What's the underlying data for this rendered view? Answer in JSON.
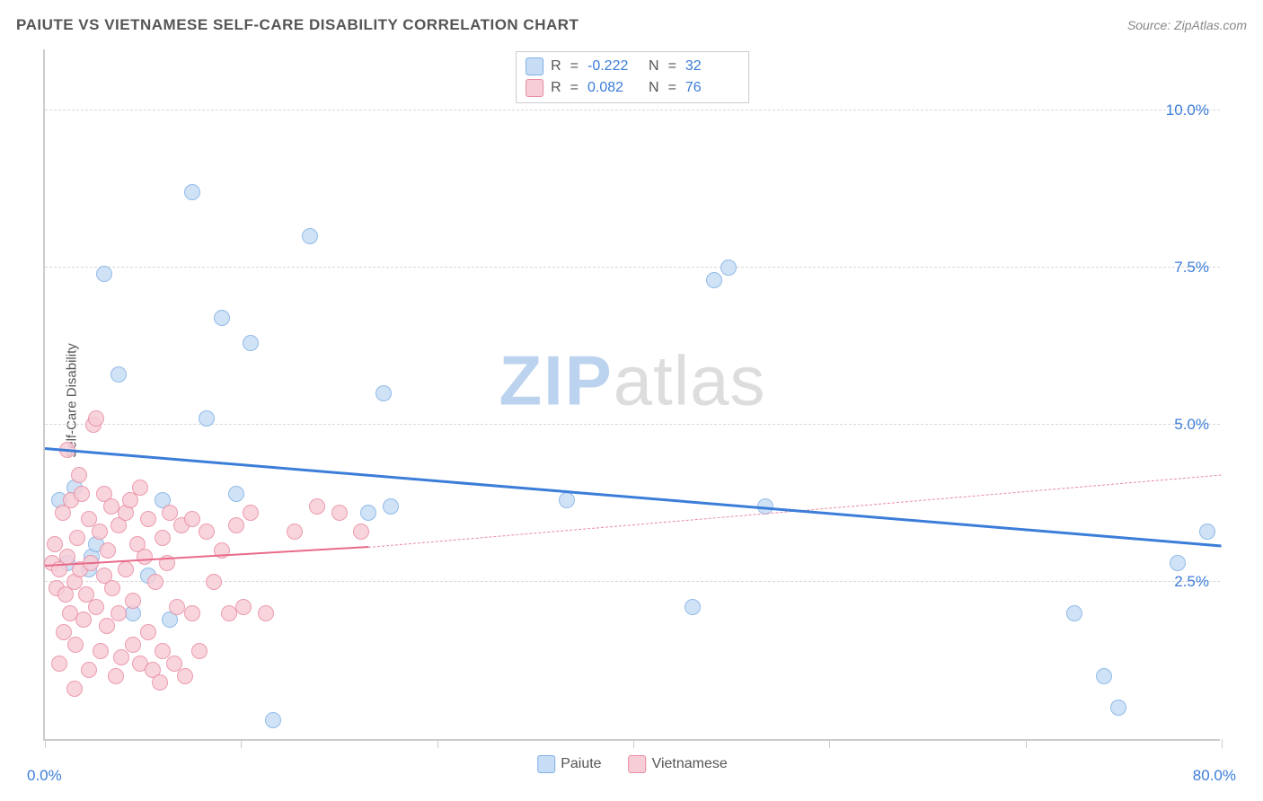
{
  "title": "PAIUTE VS VIETNAMESE SELF-CARE DISABILITY CORRELATION CHART",
  "source": "Source: ZipAtlas.com",
  "ylabel": "Self-Care Disability",
  "watermark": {
    "zip": "ZIP",
    "atlas": "atlas"
  },
  "chart": {
    "type": "scatter",
    "background_color": "#ffffff",
    "grid_color": "#d8d8d8",
    "axis_color": "#cccccc",
    "title_color": "#555555",
    "title_fontsize": 17,
    "label_fontsize": 15,
    "tick_fontsize": 17,
    "tick_color": "#3b7dd8",
    "xlim": [
      0,
      80
    ],
    "ylim": [
      0,
      11
    ],
    "x_tick_positions": [
      0,
      13.3,
      26.7,
      40,
      53.3,
      66.7,
      80
    ],
    "y_gridlines": [
      2.5,
      5.0,
      7.5,
      10.0
    ],
    "y_tick_labels": [
      "2.5%",
      "5.0%",
      "7.5%",
      "10.0%"
    ],
    "xlim_labels": [
      "0.0%",
      "80.0%"
    ],
    "marker_radius": 9,
    "marker_stroke_width": 1.5,
    "series": [
      {
        "name": "Paiute",
        "fill": "#c7ddf5",
        "stroke": "#7fb0e6",
        "r_value": "-0.222",
        "n_value": "32",
        "trend": {
          "x1": 0,
          "y1": 4.6,
          "x2": 80,
          "y2": 3.05,
          "color": "#3b7dd8",
          "width": 3,
          "dash": "solid"
        },
        "points": [
          [
            1.0,
            3.8
          ],
          [
            1.5,
            2.8
          ],
          [
            2.0,
            4.0
          ],
          [
            3.0,
            2.7
          ],
          [
            3.2,
            2.9
          ],
          [
            3.5,
            3.1
          ],
          [
            4.0,
            7.4
          ],
          [
            5.0,
            5.8
          ],
          [
            6.0,
            2.0
          ],
          [
            7.0,
            2.6
          ],
          [
            8.0,
            3.8
          ],
          [
            8.5,
            1.9
          ],
          [
            10.0,
            8.7
          ],
          [
            11.0,
            5.1
          ],
          [
            12.0,
            6.7
          ],
          [
            13.0,
            3.9
          ],
          [
            14.0,
            6.3
          ],
          [
            15.5,
            0.3
          ],
          [
            18.0,
            8.0
          ],
          [
            22.0,
            3.6
          ],
          [
            23.0,
            5.5
          ],
          [
            23.5,
            3.7
          ],
          [
            35.5,
            3.8
          ],
          [
            44.0,
            2.1
          ],
          [
            45.5,
            7.3
          ],
          [
            46.5,
            7.5
          ],
          [
            49.0,
            3.7
          ],
          [
            70.0,
            2.0
          ],
          [
            72.0,
            1.0
          ],
          [
            73.0,
            0.5
          ],
          [
            77.0,
            2.8
          ],
          [
            79.0,
            3.3
          ]
        ]
      },
      {
        "name": "Vietnamese",
        "fill": "#f7cdd7",
        "stroke": "#e98ba1",
        "r_value": "0.082",
        "n_value": "76",
        "trend_solid": {
          "x1": 0,
          "y1": 2.75,
          "x2": 22,
          "y2": 3.05,
          "color": "#e86b89",
          "width": 2.5,
          "dash": "solid"
        },
        "trend_dash": {
          "x1": 22,
          "y1": 3.05,
          "x2": 80,
          "y2": 4.2,
          "color": "#e98ba1",
          "width": 1.5,
          "dash": "dashed"
        },
        "points": [
          [
            0.5,
            2.8
          ],
          [
            0.7,
            3.1
          ],
          [
            0.8,
            2.4
          ],
          [
            1.0,
            1.2
          ],
          [
            1.0,
            2.7
          ],
          [
            1.2,
            3.6
          ],
          [
            1.3,
            1.7
          ],
          [
            1.4,
            2.3
          ],
          [
            1.5,
            2.9
          ],
          [
            1.5,
            4.6
          ],
          [
            1.7,
            2.0
          ],
          [
            1.8,
            3.8
          ],
          [
            2.0,
            0.8
          ],
          [
            2.0,
            2.5
          ],
          [
            2.1,
            1.5
          ],
          [
            2.2,
            3.2
          ],
          [
            2.3,
            4.2
          ],
          [
            2.4,
            2.7
          ],
          [
            2.5,
            3.9
          ],
          [
            2.6,
            1.9
          ],
          [
            2.8,
            2.3
          ],
          [
            3.0,
            3.5
          ],
          [
            3.0,
            1.1
          ],
          [
            3.1,
            2.8
          ],
          [
            3.3,
            5.0
          ],
          [
            3.5,
            5.1
          ],
          [
            3.5,
            2.1
          ],
          [
            3.7,
            3.3
          ],
          [
            3.8,
            1.4
          ],
          [
            4.0,
            2.6
          ],
          [
            4.0,
            3.9
          ],
          [
            4.2,
            1.8
          ],
          [
            4.3,
            3.0
          ],
          [
            4.5,
            3.7
          ],
          [
            4.6,
            2.4
          ],
          [
            4.8,
            1.0
          ],
          [
            5.0,
            3.4
          ],
          [
            5.0,
            2.0
          ],
          [
            5.2,
            1.3
          ],
          [
            5.5,
            3.6
          ],
          [
            5.5,
            2.7
          ],
          [
            5.8,
            3.8
          ],
          [
            6.0,
            2.2
          ],
          [
            6.0,
            1.5
          ],
          [
            6.3,
            3.1
          ],
          [
            6.5,
            4.0
          ],
          [
            6.5,
            1.2
          ],
          [
            6.8,
            2.9
          ],
          [
            7.0,
            1.7
          ],
          [
            7.0,
            3.5
          ],
          [
            7.3,
            1.1
          ],
          [
            7.5,
            2.5
          ],
          [
            7.8,
            0.9
          ],
          [
            8.0,
            3.2
          ],
          [
            8.0,
            1.4
          ],
          [
            8.3,
            2.8
          ],
          [
            8.5,
            3.6
          ],
          [
            8.8,
            1.2
          ],
          [
            9.0,
            2.1
          ],
          [
            9.3,
            3.4
          ],
          [
            9.5,
            1.0
          ],
          [
            10.0,
            2.0
          ],
          [
            10.0,
            3.5
          ],
          [
            10.5,
            1.4
          ],
          [
            11.0,
            3.3
          ],
          [
            11.5,
            2.5
          ],
          [
            12.0,
            3.0
          ],
          [
            12.5,
            2.0
          ],
          [
            13.0,
            3.4
          ],
          [
            13.5,
            2.1
          ],
          [
            14.0,
            3.6
          ],
          [
            15.0,
            2.0
          ],
          [
            17.0,
            3.3
          ],
          [
            18.5,
            3.7
          ],
          [
            20.0,
            3.6
          ],
          [
            21.5,
            3.3
          ]
        ]
      }
    ]
  },
  "legend_bottom": [
    {
      "label": "Paiute",
      "fill": "#c7ddf5",
      "stroke": "#7fb0e6"
    },
    {
      "label": "Vietnamese",
      "fill": "#f7cdd7",
      "stroke": "#e98ba1"
    }
  ]
}
